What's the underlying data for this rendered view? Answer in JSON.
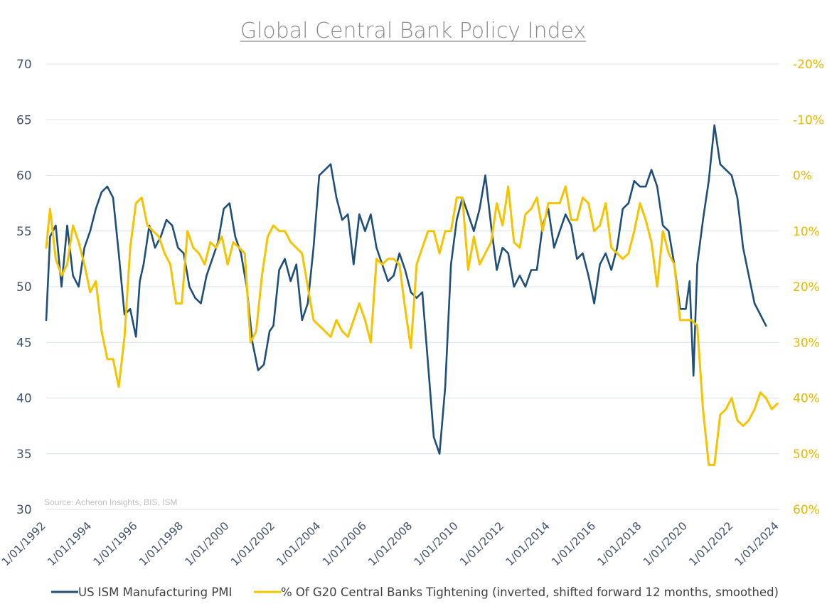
{
  "chart_data": {
    "type": "line",
    "title": "Global Central Bank Policy Index",
    "source_note": "Source: Acheron Insights, BIS, ISM",
    "y_left": {
      "ticks": [
        "30",
        "35",
        "40",
        "45",
        "50",
        "55",
        "60",
        "65",
        "70"
      ],
      "ylim": [
        30,
        70
      ],
      "color": "#44546a"
    },
    "y_right": {
      "ticks": [
        "-20%",
        "-10%",
        "0%",
        "10%",
        "20%",
        "30%",
        "40%",
        "50%",
        "60%"
      ],
      "ylim": [
        -20,
        60
      ],
      "inverted": true,
      "color": "#e3b800"
    },
    "x_ticks": [
      "1/01/1992",
      "1/01/1994",
      "1/01/1996",
      "1/01/1998",
      "1/01/2000",
      "1/01/2002",
      "1/01/2004",
      "1/01/2006",
      "1/01/2008",
      "1/01/2010",
      "1/01/2012",
      "1/01/2014",
      "1/01/2016",
      "1/01/2018",
      "1/01/2020",
      "1/01/2022",
      "1/01/2024"
    ],
    "x_range": [
      "1992-01",
      "2024-01"
    ],
    "grid": true,
    "legend_position": "bottom",
    "series": [
      {
        "name": "US ISM Manufacturing PMI",
        "axis": "left",
        "color": "#1f4e79",
        "x": [
          "1992-01",
          "1992-03",
          "1992-06",
          "1992-09",
          "1992-12",
          "1993-03",
          "1993-06",
          "1993-09",
          "1993-12",
          "1994-03",
          "1994-06",
          "1994-09",
          "1994-12",
          "1995-03",
          "1995-06",
          "1995-09",
          "1995-12",
          "1996-02",
          "1996-04",
          "1996-07",
          "1996-10",
          "1997-01",
          "1997-04",
          "1997-07",
          "1997-10",
          "1998-01",
          "1998-04",
          "1998-07",
          "1998-10",
          "1999-01",
          "1999-04",
          "1999-07",
          "1999-10",
          "2000-01",
          "2000-04",
          "2000-07",
          "2000-10",
          "2001-01",
          "2001-04",
          "2001-07",
          "2001-10",
          "2001-12",
          "2002-03",
          "2002-06",
          "2002-09",
          "2002-12",
          "2003-03",
          "2003-06",
          "2003-09",
          "2003-12",
          "2004-03",
          "2004-06",
          "2004-09",
          "2004-12",
          "2005-03",
          "2005-06",
          "2005-09",
          "2005-12",
          "2006-03",
          "2006-06",
          "2006-09",
          "2006-12",
          "2007-03",
          "2007-06",
          "2007-09",
          "2007-12",
          "2008-03",
          "2008-06",
          "2008-09",
          "2008-12",
          "2009-03",
          "2009-06",
          "2009-09",
          "2009-12",
          "2010-03",
          "2010-06",
          "2010-09",
          "2010-12",
          "2011-03",
          "2011-06",
          "2011-09",
          "2011-12",
          "2012-03",
          "2012-06",
          "2012-09",
          "2012-12",
          "2013-03",
          "2013-06",
          "2013-09",
          "2013-12",
          "2014-03",
          "2014-06",
          "2014-09",
          "2014-12",
          "2015-03",
          "2015-06",
          "2015-09",
          "2015-12",
          "2016-03",
          "2016-06",
          "2016-09",
          "2016-12",
          "2017-03",
          "2017-06",
          "2017-09",
          "2017-12",
          "2018-03",
          "2018-06",
          "2018-09",
          "2018-12",
          "2019-03",
          "2019-06",
          "2019-09",
          "2019-12",
          "2020-02",
          "2020-04",
          "2020-06",
          "2020-09",
          "2020-12",
          "2021-03",
          "2021-06",
          "2021-09",
          "2021-12",
          "2022-03",
          "2022-06",
          "2022-09",
          "2022-12",
          "2023-03",
          "2023-06"
        ],
        "values": [
          47.0,
          54.5,
          55.5,
          50.0,
          55.5,
          51.0,
          50.0,
          53.5,
          55.0,
          57.0,
          58.5,
          59.0,
          58.0,
          53.0,
          47.5,
          48.0,
          45.5,
          50.5,
          52.0,
          55.5,
          53.5,
          54.5,
          56.0,
          55.5,
          53.5,
          53.0,
          50.0,
          49.0,
          48.5,
          51.0,
          52.5,
          54.0,
          57.0,
          57.5,
          54.5,
          53.0,
          50.0,
          45.0,
          42.5,
          43.0,
          46.0,
          46.5,
          51.5,
          52.5,
          50.5,
          52.0,
          47.0,
          48.5,
          53.5,
          60.0,
          60.5,
          61.0,
          58.0,
          56.0,
          56.5,
          52.0,
          56.5,
          55.0,
          56.5,
          53.5,
          52.0,
          50.5,
          51.0,
          53.0,
          51.5,
          49.5,
          49.0,
          49.5,
          43.0,
          36.5,
          35.0,
          41.0,
          52.0,
          56.0,
          58.0,
          56.5,
          55.0,
          57.0,
          60.0,
          55.5,
          51.5,
          53.5,
          53.0,
          50.0,
          51.0,
          50.0,
          51.5,
          51.5,
          55.5,
          57.0,
          53.5,
          55.0,
          56.5,
          55.5,
          52.5,
          53.0,
          51.0,
          48.5,
          52.0,
          53.0,
          51.5,
          53.5,
          57.0,
          57.5,
          59.5,
          59.0,
          59.0,
          60.5,
          59.0,
          55.5,
          55.0,
          52.0,
          48.0,
          48.0,
          50.5,
          42.0,
          52.0,
          56.0,
          59.5,
          64.5,
          61.0,
          60.5,
          60.0,
          58.0,
          53.5,
          51.0,
          48.5,
          47.5,
          46.5
        ]
      },
      {
        "name": "% Of G20 Central Banks Tightening (inverted, shifted forward 12 months, smoothed)",
        "axis": "right",
        "color": "#f5c400",
        "x": [
          "1992-01",
          "1992-03",
          "1992-06",
          "1992-09",
          "1992-12",
          "1993-03",
          "1993-06",
          "1993-09",
          "1993-12",
          "1994-03",
          "1994-06",
          "1994-09",
          "1994-12",
          "1995-03",
          "1995-06",
          "1995-09",
          "1995-12",
          "1996-03",
          "1996-06",
          "1996-09",
          "1996-12",
          "1997-03",
          "1997-06",
          "1997-09",
          "1997-12",
          "1998-03",
          "1998-06",
          "1998-09",
          "1998-12",
          "1999-03",
          "1999-06",
          "1999-09",
          "1999-12",
          "2000-03",
          "2000-06",
          "2000-09",
          "2000-12",
          "2001-03",
          "2001-06",
          "2001-09",
          "2001-12",
          "2002-03",
          "2002-06",
          "2002-09",
          "2002-12",
          "2003-03",
          "2003-06",
          "2003-09",
          "2003-12",
          "2004-03",
          "2004-06",
          "2004-09",
          "2004-12",
          "2005-03",
          "2005-06",
          "2005-09",
          "2005-12",
          "2006-03",
          "2006-06",
          "2006-09",
          "2006-12",
          "2007-03",
          "2007-06",
          "2007-09",
          "2007-12",
          "2008-03",
          "2008-06",
          "2008-09",
          "2008-12",
          "2009-03",
          "2009-06",
          "2009-09",
          "2009-12",
          "2010-03",
          "2010-06",
          "2010-09",
          "2010-12",
          "2011-03",
          "2011-06",
          "2011-09",
          "2011-12",
          "2012-03",
          "2012-06",
          "2012-09",
          "2012-12",
          "2013-03",
          "2013-06",
          "2013-09",
          "2013-12",
          "2014-03",
          "2014-06",
          "2014-09",
          "2014-12",
          "2015-03",
          "2015-06",
          "2015-09",
          "2015-12",
          "2016-03",
          "2016-06",
          "2016-09",
          "2016-12",
          "2017-03",
          "2017-06",
          "2017-09",
          "2017-12",
          "2018-03",
          "2018-06",
          "2018-09",
          "2018-12",
          "2019-03",
          "2019-06",
          "2019-09",
          "2019-12",
          "2020-03",
          "2020-06",
          "2020-09",
          "2020-12",
          "2021-03",
          "2021-06",
          "2021-09",
          "2021-12",
          "2022-03",
          "2022-06",
          "2022-09",
          "2022-12",
          "2023-03",
          "2023-06",
          "2023-09",
          "2023-12"
        ],
        "values": [
          13,
          6,
          15,
          18,
          16,
          9,
          12,
          16,
          21,
          19,
          28,
          33,
          33,
          38,
          29,
          13,
          5,
          4,
          9,
          10,
          11,
          14,
          16,
          23,
          23,
          10,
          13,
          14,
          16,
          12,
          13,
          11,
          16,
          12,
          13,
          14,
          30,
          28,
          18,
          11,
          9,
          10,
          10,
          12,
          13,
          14,
          20,
          26,
          27,
          28,
          29,
          26,
          28,
          29,
          26,
          23,
          26,
          30,
          15,
          16,
          15,
          15,
          16,
          24,
          31,
          16,
          13,
          10,
          10,
          14,
          10,
          10,
          4,
          4,
          17,
          11,
          16,
          14,
          12,
          5,
          9,
          2,
          12,
          13,
          7,
          6,
          4,
          10,
          5,
          5,
          5,
          2,
          8,
          8,
          4,
          5,
          10,
          9,
          5,
          13,
          14,
          15,
          14,
          10,
          5,
          8,
          12,
          20,
          10,
          14,
          16,
          26,
          26,
          26,
          27,
          42,
          52,
          52,
          43,
          42,
          40,
          44,
          45,
          44,
          42,
          39,
          40,
          42,
          41
        ]
      }
    ]
  }
}
